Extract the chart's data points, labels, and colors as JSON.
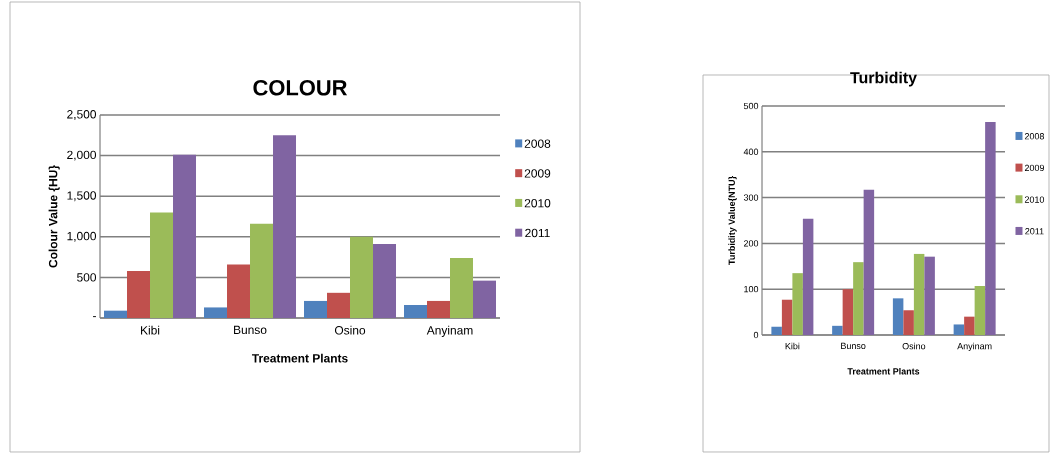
{
  "chart_data": [
    {
      "type": "bar",
      "title": "COLOUR",
      "xlabel": "Treatment Plants",
      "ylabel": "Colour Value {HU}",
      "categories": [
        "Kibi",
        "Bunso",
        "Osino",
        "Anyinam"
      ],
      "series": [
        {
          "name": "2008",
          "color": "#4f81bd",
          "values": [
            90,
            130,
            210,
            160
          ]
        },
        {
          "name": "2009",
          "color": "#c0504d",
          "values": [
            580,
            660,
            310,
            210
          ]
        },
        {
          "name": "2010",
          "color": "#9bbb59",
          "values": [
            1300,
            1160,
            1000,
            740
          ]
        },
        {
          "name": "2011",
          "color": "#8064a2",
          "values": [
            2010,
            2250,
            910,
            460
          ]
        }
      ],
      "ylim": [
        0,
        2500
      ],
      "yticks": [
        {
          "value": 0,
          "label": "-"
        },
        500,
        {
          "value": 1000,
          "label": "1,000"
        },
        {
          "value": 1500,
          "label": "1,500"
        },
        {
          "value": 2000,
          "label": "2,000"
        },
        {
          "value": 2500,
          "label": "2,500"
        }
      ],
      "grid": "y",
      "legend": "right"
    },
    {
      "type": "bar",
      "title": "Turbidity",
      "xlabel": "Treatment Plants",
      "ylabel": "Turbidity Value{NTU}",
      "categories": [
        "Kibi",
        "Bunso",
        "Osino",
        "Anyinam"
      ],
      "series": [
        {
          "name": "2008",
          "color": "#4f81bd",
          "values": [
            18,
            20,
            80,
            23
          ]
        },
        {
          "name": "2009",
          "color": "#c0504d",
          "values": [
            77,
            100,
            54,
            40
          ]
        },
        {
          "name": "2010",
          "color": "#9bbb59",
          "values": [
            135,
            159,
            177,
            107
          ]
        },
        {
          "name": "2011",
          "color": "#8064a2",
          "values": [
            254,
            317,
            171,
            465
          ]
        }
      ],
      "ylim": [
        0,
        500
      ],
      "yticks": [
        0,
        100,
        200,
        300,
        400,
        500
      ],
      "grid": "y",
      "legend": "right"
    }
  ]
}
